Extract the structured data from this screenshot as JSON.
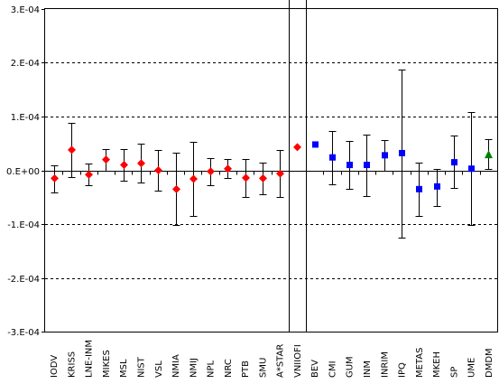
{
  "chart_data": {
    "type": "scatter",
    "ylim": [
      -0.0003,
      0.0003
    ],
    "y_ticks": [
      {
        "value": 0.0003,
        "label": "3.E-04"
      },
      {
        "value": 0.0002,
        "label": "2.E-04"
      },
      {
        "value": 0.0001,
        "label": "1.E-04"
      },
      {
        "value": 0.0,
        "label": "0.E+00"
      },
      {
        "value": -0.0001,
        "label": "-1.E-04"
      },
      {
        "value": -0.0002,
        "label": "-2.E-04"
      },
      {
        "value": -0.0003,
        "label": "-3.E-04"
      }
    ],
    "grid": "horizontal dashed",
    "legend": "none",
    "categories": [
      "IODV",
      "KRISS",
      "LNE-INM",
      "MIKES",
      "MSL",
      "NIST",
      "VSL",
      "NMIA",
      "NMIJ",
      "NPL",
      "NRC",
      "PTB",
      "SMU",
      "A*STAR",
      "VNIIOFI",
      "BEV",
      "CMI",
      "GUM",
      "INM",
      "INRIM",
      "IPQ",
      "METAS",
      "MKEH",
      "SP",
      "UME",
      "DMDM"
    ],
    "points": [
      {
        "label": "IODV",
        "y": -1.5e-05,
        "low": -4.2e-05,
        "high": 1e-05,
        "marker": "diamond",
        "color": "#ff0000"
      },
      {
        "label": "KRISS",
        "y": 3.8e-05,
        "low": -1.2e-05,
        "high": 8.8e-05,
        "marker": "diamond",
        "color": "#ff0000"
      },
      {
        "label": "LNE-INM",
        "y": -8e-06,
        "low": -2.8e-05,
        "high": 1.2e-05,
        "marker": "diamond",
        "color": "#ff0000"
      },
      {
        "label": "MIKES",
        "y": 2e-05,
        "low": 0.0,
        "high": 4e-05,
        "marker": "diamond",
        "color": "#ff0000"
      },
      {
        "label": "MSL",
        "y": 1e-05,
        "low": -2e-05,
        "high": 4e-05,
        "marker": "diamond",
        "color": "#ff0000"
      },
      {
        "label": "NIST",
        "y": 1.3e-05,
        "low": -2.2e-05,
        "high": 4.9e-05,
        "marker": "diamond",
        "color": "#ff0000"
      },
      {
        "label": "VSL",
        "y": 0.0,
        "low": -3.7e-05,
        "high": 3.7e-05,
        "marker": "diamond",
        "color": "#ff0000"
      },
      {
        "label": "NMIA",
        "y": -3.5e-05,
        "low": -0.000102,
        "high": 3.2e-05,
        "marker": "diamond",
        "color": "#ff0000"
      },
      {
        "label": "NMIJ",
        "y": -1.6e-05,
        "low": -8.5e-05,
        "high": 5.3e-05,
        "marker": "diamond",
        "color": "#ff0000"
      },
      {
        "label": "NPL",
        "y": -2e-06,
        "low": -2.7e-05,
        "high": 2.3e-05,
        "marker": "diamond",
        "color": "#ff0000"
      },
      {
        "label": "NRC",
        "y": 3e-06,
        "low": -1.5e-05,
        "high": 2.1e-05,
        "marker": "diamond",
        "color": "#ff0000"
      },
      {
        "label": "PTB",
        "y": -1.4e-05,
        "low": -5e-05,
        "high": 2.1e-05,
        "marker": "diamond",
        "color": "#ff0000"
      },
      {
        "label": "SMU",
        "y": -1.5e-05,
        "low": -4.5e-05,
        "high": 1.5e-05,
        "marker": "diamond",
        "color": "#ff0000"
      },
      {
        "label": "A*STAR",
        "y": -6e-06,
        "low": -5e-05,
        "high": 3.8e-05,
        "marker": "diamond",
        "color": "#ff0000"
      },
      {
        "label": "VNIIOFI",
        "y": 4.3e-05,
        "low": 4.3e-05,
        "high": 4.3e-05,
        "marker": "diamond",
        "color": "#ff0000"
      },
      {
        "label": "BEV",
        "y": 4.8e-05,
        "low": 4.8e-05,
        "high": 4.8e-05,
        "marker": "square",
        "color": "#0000ff"
      },
      {
        "label": "CMI",
        "y": 2.4e-05,
        "low": -2.6e-05,
        "high": 7.3e-05,
        "marker": "square",
        "color": "#0000ff"
      },
      {
        "label": "GUM",
        "y": 1e-05,
        "low": -3.5e-05,
        "high": 5.5e-05,
        "marker": "square",
        "color": "#0000ff"
      },
      {
        "label": "INM",
        "y": 1e-05,
        "low": -4.8e-05,
        "high": 6.6e-05,
        "marker": "square",
        "color": "#0000ff"
      },
      {
        "label": "INRIM",
        "y": 2.8e-05,
        "low": 0.0,
        "high": 5.7e-05,
        "marker": "square",
        "color": "#0000ff"
      },
      {
        "label": "IPQ",
        "y": 3.2e-05,
        "low": -0.000125,
        "high": 0.000188,
        "marker": "square",
        "color": "#0000ff"
      },
      {
        "label": "METAS",
        "y": -3.5e-05,
        "low": -8.5e-05,
        "high": 1.5e-05,
        "marker": "square",
        "color": "#0000ff"
      },
      {
        "label": "MKEH",
        "y": -3e-05,
        "low": -6.7e-05,
        "high": 3e-06,
        "marker": "square",
        "color": "#0000ff"
      },
      {
        "label": "SP",
        "y": 1.5e-05,
        "low": -3.3e-05,
        "high": 6.4e-05,
        "marker": "square",
        "color": "#0000ff"
      },
      {
        "label": "UME",
        "y": 3e-06,
        "low": -0.000102,
        "high": 0.000108,
        "marker": "square",
        "color": "#0000ff"
      },
      {
        "label": "DMDM",
        "y": 3e-05,
        "low": 3e-06,
        "high": 5.8e-05,
        "marker": "triangle",
        "color": "#008000"
      }
    ],
    "separator_lines_after": [
      "A*STAR",
      "VNIIOFI"
    ]
  }
}
